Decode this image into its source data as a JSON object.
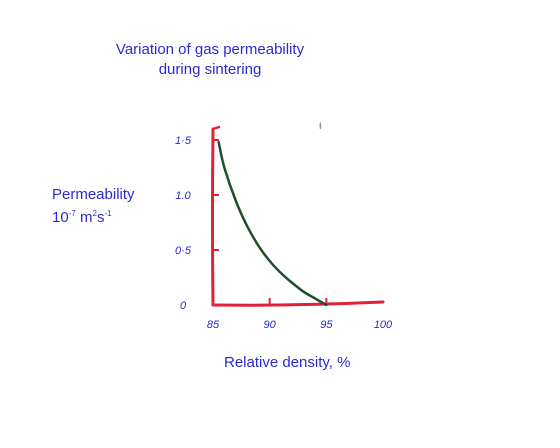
{
  "chart_data": {
    "type": "line",
    "title_lines": [
      "Variation of gas permeability",
      "during sintering"
    ],
    "ylabel_line1": "Permeability",
    "ylabel_unit": {
      "base": "10",
      "exp1": "-7",
      "unit1": " m",
      "exp2": "2",
      "unit2": "s",
      "exp3": "-1"
    },
    "xlabel": "Relative density, %",
    "x_ticks": [
      "85",
      "90",
      "95",
      "100"
    ],
    "y_ticks": [
      "0",
      "0.5",
      "1.0",
      "1.5"
    ],
    "y_tick_display": [
      "0",
      "0·5",
      "1.0",
      "1·5"
    ],
    "xlim": [
      85,
      100
    ],
    "ylim": [
      0,
      1.6
    ],
    "series": [
      {
        "x": [
          85.5,
          86,
          87,
          88,
          89,
          90,
          91,
          92,
          93,
          94,
          95
        ],
        "y": [
          1.48,
          1.25,
          0.95,
          0.72,
          0.54,
          0.4,
          0.29,
          0.2,
          0.12,
          0.06,
          0.0
        ],
        "color": "#1c4f2c"
      }
    ],
    "axis_color": "#e0203a",
    "text_color": "#2a2ad0",
    "grid": false
  },
  "stray_mark": "ᵻ"
}
